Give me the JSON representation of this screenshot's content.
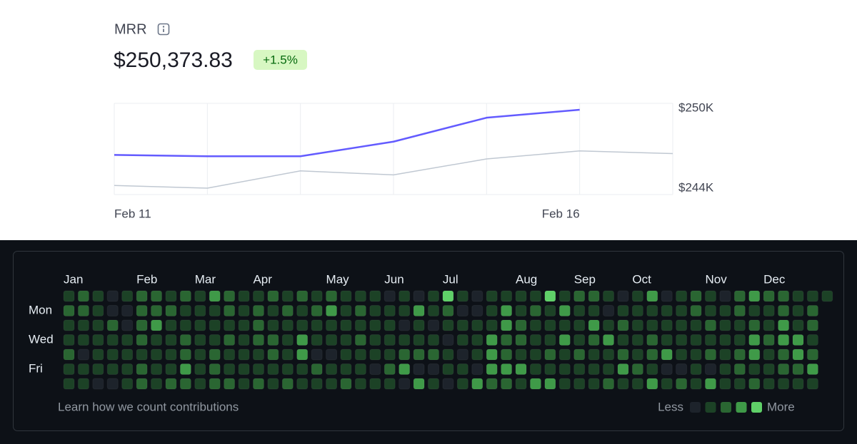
{
  "chart_data": [
    {
      "type": "line",
      "title": "MRR",
      "value_label": "$250,373.83",
      "badge": "+1.5%",
      "categories": [
        "Feb 11",
        null,
        null,
        null,
        null,
        "Feb 16",
        null
      ],
      "series": [
        {
          "color": "#635bff",
          "values": [
            246500,
            246400,
            246400,
            247500,
            249300,
            249900,
            null
          ]
        },
        {
          "color": "#c0c8d2",
          "values": [
            244200,
            244000,
            245300,
            245000,
            246200,
            246800,
            246600
          ]
        }
      ],
      "ylim": [
        243520,
        250380
      ],
      "yticks": [
        {
          "value": 250000,
          "label": "$250K"
        },
        {
          "value": 244000,
          "label": "$244K"
        }
      ]
    },
    {
      "type": "heatmap",
      "x": [
        "Jan",
        null,
        null,
        null,
        null,
        "Feb",
        null,
        null,
        null,
        "Mar",
        null,
        null,
        null,
        "Apr",
        null,
        null,
        null,
        null,
        "May",
        null,
        null,
        null,
        "Jun",
        null,
        null,
        null,
        "Jul",
        null,
        null,
        null,
        null,
        "Aug",
        null,
        null,
        null,
        "Sep",
        null,
        null,
        null,
        "Oct",
        null,
        null,
        null,
        null,
        "Nov",
        null,
        null,
        null,
        "Dec",
        null,
        null,
        null,
        null
      ],
      "rows": [
        null,
        "Mon",
        null,
        "Wed",
        null,
        "Fri",
        null
      ],
      "values": [
        [
          1,
          2,
          1,
          1,
          2,
          1,
          1
        ],
        [
          2,
          2,
          1,
          1,
          0,
          1,
          1
        ],
        [
          1,
          1,
          1,
          1,
          1,
          1,
          0
        ],
        [
          0,
          0,
          2,
          1,
          1,
          1,
          0
        ],
        [
          1,
          0,
          0,
          1,
          1,
          1,
          1
        ],
        [
          2,
          2,
          2,
          2,
          1,
          2,
          2
        ],
        [
          2,
          2,
          3,
          1,
          1,
          1,
          1
        ],
        [
          1,
          2,
          1,
          1,
          1,
          1,
          2
        ],
        [
          2,
          1,
          1,
          2,
          2,
          3,
          2
        ],
        [
          1,
          1,
          1,
          1,
          1,
          1,
          1
        ],
        [
          3,
          1,
          1,
          1,
          2,
          2,
          2
        ],
        [
          2,
          2,
          1,
          2,
          1,
          1,
          2
        ],
        [
          1,
          1,
          1,
          1,
          1,
          1,
          1
        ],
        [
          1,
          2,
          2,
          2,
          1,
          1,
          2
        ],
        [
          2,
          1,
          1,
          2,
          2,
          1,
          1
        ],
        [
          1,
          2,
          1,
          1,
          1,
          1,
          2
        ],
        [
          2,
          1,
          1,
          3,
          3,
          1,
          1
        ],
        [
          1,
          2,
          1,
          1,
          0,
          2,
          1
        ],
        [
          2,
          3,
          1,
          1,
          0,
          1,
          1
        ],
        [
          1,
          1,
          1,
          1,
          1,
          1,
          2
        ],
        [
          1,
          2,
          1,
          2,
          1,
          1,
          1
        ],
        [
          1,
          1,
          1,
          1,
          1,
          0,
          1
        ],
        [
          0,
          1,
          1,
          1,
          1,
          2,
          1
        ],
        [
          1,
          1,
          0,
          1,
          2,
          3,
          0
        ],
        [
          0,
          3,
          1,
          1,
          2,
          0,
          3
        ],
        [
          1,
          1,
          0,
          1,
          2,
          0,
          1
        ],
        [
          4,
          2,
          1,
          0,
          1,
          1,
          0
        ],
        [
          1,
          0,
          1,
          1,
          0,
          1,
          1
        ],
        [
          0,
          0,
          1,
          1,
          1,
          0,
          3
        ],
        [
          1,
          1,
          1,
          3,
          3,
          3,
          2
        ],
        [
          1,
          3,
          3,
          2,
          2,
          3,
          2
        ],
        [
          1,
          1,
          2,
          2,
          1,
          3,
          1
        ],
        [
          1,
          2,
          1,
          1,
          1,
          1,
          3
        ],
        [
          4,
          1,
          1,
          1,
          2,
          1,
          3
        ],
        [
          1,
          3,
          1,
          3,
          1,
          1,
          1
        ],
        [
          2,
          1,
          1,
          1,
          2,
          1,
          1
        ],
        [
          2,
          1,
          3,
          2,
          1,
          1,
          1
        ],
        [
          1,
          0,
          1,
          3,
          1,
          1,
          2
        ],
        [
          0,
          1,
          2,
          1,
          2,
          3,
          1
        ],
        [
          1,
          1,
          1,
          1,
          1,
          2,
          1
        ],
        [
          3,
          1,
          1,
          2,
          2,
          1,
          3
        ],
        [
          0,
          1,
          1,
          1,
          3,
          0,
          1
        ],
        [
          1,
          1,
          1,
          1,
          1,
          0,
          2
        ],
        [
          2,
          2,
          1,
          1,
          1,
          1,
          1
        ],
        [
          1,
          1,
          2,
          1,
          2,
          0,
          3
        ],
        [
          0,
          1,
          1,
          1,
          1,
          1,
          1
        ],
        [
          2,
          2,
          1,
          1,
          2,
          2,
          1
        ],
        [
          3,
          1,
          2,
          3,
          3,
          1,
          2
        ],
        [
          2,
          1,
          1,
          2,
          1,
          1,
          1
        ],
        [
          2,
          2,
          3,
          3,
          2,
          2,
          1
        ],
        [
          1,
          1,
          1,
          3,
          3,
          2,
          1
        ],
        [
          1,
          2,
          2,
          1,
          2,
          3,
          1
        ],
        [
          1,
          null,
          null,
          null,
          null,
          null,
          null
        ]
      ],
      "colors": [
        "#1d232b",
        "#1c4226",
        "#2a6632",
        "#3f9a48",
        "#5fd068"
      ],
      "footnote": "Learn how we count contributions",
      "legend_less": "Less",
      "legend_more": "More"
    }
  ]
}
